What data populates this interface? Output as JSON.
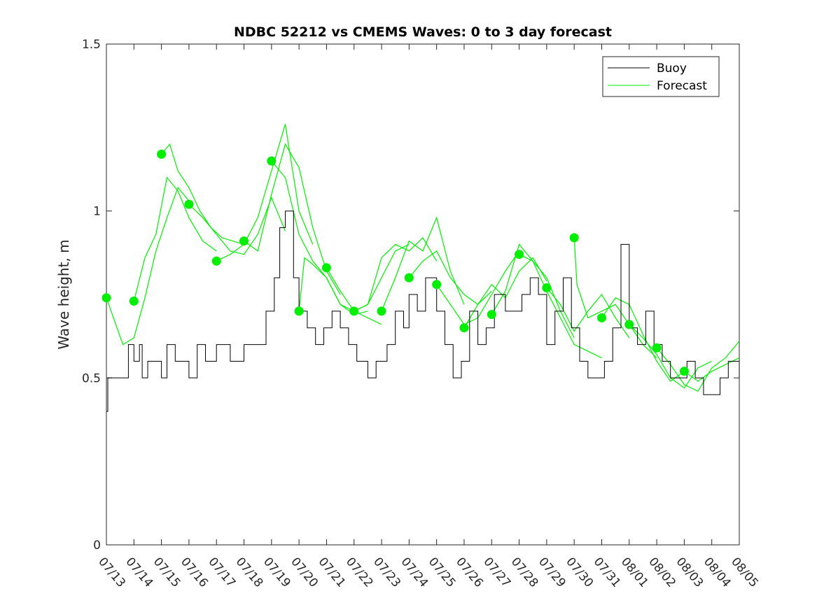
{
  "chart_data": {
    "type": "line",
    "title": "NDBC 52212 vs CMEMS Waves: 0 to 3 day forecast",
    "xlabel": "",
    "ylabel": "Wave height, m",
    "xlim": [
      "07/13",
      "08/05"
    ],
    "ylim": [
      0,
      1.5
    ],
    "x_tick_labels": [
      "07/13",
      "07/14",
      "07/15",
      "07/16",
      "07/17",
      "07/18",
      "07/19",
      "07/20",
      "07/21",
      "07/22",
      "07/23",
      "07/24",
      "07/25",
      "07/26",
      "07/27",
      "07/28",
      "07/29",
      "07/30",
      "07/31",
      "08/01",
      "08/02",
      "08/03",
      "08/04",
      "08/05"
    ],
    "y_ticks": [
      0,
      0.5,
      1,
      1.5
    ],
    "y_tick_labels": [
      "0",
      "0.5",
      "1",
      "1.5"
    ],
    "grid": false,
    "legend": {
      "placement": "top-right",
      "entries": [
        "Buoy",
        "Forecast"
      ]
    },
    "colors": {
      "buoy": "#000000",
      "forecast": "#00ee00",
      "markers": "#00ee00",
      "axis": "#262626"
    },
    "x_unit": "days since 07/13 00:00 (07/13 = 0, 08/05 = 23)",
    "buoy": {
      "name": "Buoy",
      "x": [
        0,
        0.05,
        0.1,
        0.6,
        0.8,
        1.0,
        1.2,
        1.3,
        1.5,
        2.0,
        2.2,
        2.5,
        3.0,
        3.3,
        3.6,
        4.0,
        4.5,
        5.0,
        5.3,
        5.6,
        5.8,
        6.0,
        6.1,
        6.3,
        6.5,
        6.8,
        7.0,
        7.3,
        7.6,
        7.9,
        8.2,
        8.5,
        8.8,
        9.1,
        9.5,
        9.8,
        10.2,
        10.5,
        10.8,
        11.0,
        11.3,
        11.6,
        12.0,
        12.3,
        12.6,
        12.9,
        13.2,
        13.5,
        13.8,
        14.1,
        14.5,
        14.8,
        15.1,
        15.4,
        15.7,
        16.0,
        16.3,
        16.6,
        16.9,
        17.2,
        17.5,
        17.8,
        18.1,
        18.4,
        18.7,
        19.0,
        19.3,
        19.6,
        19.9,
        20.2,
        20.5,
        20.8,
        21.1,
        21.4,
        21.7,
        22.0,
        22.3,
        22.6,
        23.0
      ],
      "y": [
        0.4,
        0.5,
        0.5,
        0.5,
        0.6,
        0.55,
        0.6,
        0.5,
        0.55,
        0.5,
        0.6,
        0.55,
        0.5,
        0.6,
        0.55,
        0.6,
        0.55,
        0.6,
        0.6,
        0.6,
        0.7,
        0.7,
        0.8,
        0.95,
        1.0,
        0.8,
        0.7,
        0.65,
        0.6,
        0.65,
        0.7,
        0.65,
        0.6,
        0.55,
        0.5,
        0.55,
        0.6,
        0.7,
        0.65,
        0.75,
        0.7,
        0.8,
        0.7,
        0.6,
        0.5,
        0.55,
        0.7,
        0.6,
        0.65,
        0.75,
        0.7,
        0.7,
        0.75,
        0.8,
        0.75,
        0.6,
        0.7,
        0.8,
        0.65,
        0.55,
        0.5,
        0.5,
        0.55,
        0.65,
        0.9,
        0.65,
        0.6,
        0.7,
        0.6,
        0.55,
        0.5,
        0.5,
        0.55,
        0.5,
        0.45,
        0.45,
        0.5,
        0.55,
        0.5
      ]
    },
    "forecast_runs": [
      {
        "x": [
          0,
          0.3,
          0.6,
          1.0,
          1.4,
          1.8,
          2.2,
          2.6,
          3.0
        ],
        "y": [
          0.74,
          0.67,
          0.6,
          0.62,
          0.74,
          0.88,
          0.98,
          1.07,
          1.03
        ]
      },
      {
        "x": [
          1,
          1.4,
          1.8,
          2.2,
          2.6,
          3.0,
          3.5,
          4.0
        ],
        "y": [
          0.73,
          0.86,
          0.93,
          1.1,
          1.06,
          0.98,
          0.91,
          0.88
        ]
      },
      {
        "x": [
          2,
          2.3,
          2.6,
          3.0,
          3.4,
          3.8,
          4.2,
          5.0
        ],
        "y": [
          1.17,
          1.2,
          1.12,
          1.07,
          1.0,
          0.95,
          0.92,
          0.9
        ]
      },
      {
        "x": [
          3,
          3.5,
          4.0,
          4.5,
          5.0,
          5.5,
          6.0,
          6.5
        ],
        "y": [
          1.02,
          0.98,
          0.93,
          0.88,
          0.87,
          0.93,
          1.04,
          0.94
        ]
      },
      {
        "x": [
          4,
          4.5,
          5.0,
          5.5,
          6.0,
          6.5,
          7.0,
          7.5
        ],
        "y": [
          0.85,
          0.87,
          0.9,
          0.98,
          1.12,
          1.26,
          1.0,
          0.9
        ]
      },
      {
        "x": [
          5,
          5.5,
          6.0,
          6.5,
          7.0,
          7.5,
          8.0,
          8.5
        ],
        "y": [
          0.91,
          0.88,
          1.05,
          1.2,
          1.13,
          0.95,
          0.82,
          0.75
        ]
      },
      {
        "x": [
          6,
          6.5,
          7.0,
          7.5,
          8.0,
          8.5,
          9.0,
          9.5
        ],
        "y": [
          1.15,
          1.1,
          0.93,
          0.85,
          0.8,
          0.72,
          0.69,
          0.7
        ]
      },
      {
        "x": [
          7,
          7.2,
          7.5,
          8.0,
          8.5,
          9.0,
          9.5,
          10.0
        ],
        "y": [
          0.7,
          0.86,
          0.84,
          0.8,
          0.72,
          0.7,
          0.68,
          0.66
        ]
      },
      {
        "x": [
          8,
          8.5,
          9.0,
          9.5,
          10.0,
          10.5,
          11.0
        ],
        "y": [
          0.83,
          0.76,
          0.7,
          0.72,
          0.8,
          0.88,
          0.9
        ]
      },
      {
        "x": [
          9,
          9.5,
          10.0,
          10.5,
          11.0,
          11.5,
          12.0
        ],
        "y": [
          0.7,
          0.72,
          0.86,
          0.9,
          0.88,
          0.92,
          0.85
        ]
      },
      {
        "x": [
          10,
          10.5,
          11.0,
          11.5,
          12.0,
          12.5,
          13.0
        ],
        "y": [
          0.7,
          0.8,
          0.91,
          0.88,
          0.98,
          0.82,
          0.72
        ]
      },
      {
        "x": [
          11,
          11.5,
          12.0,
          12.5,
          13.0,
          13.5,
          14.0
        ],
        "y": [
          0.8,
          0.85,
          0.88,
          0.8,
          0.75,
          0.72,
          0.76
        ]
      },
      {
        "x": [
          12,
          12.5,
          13.0,
          13.5,
          14.0,
          14.5,
          15.0
        ],
        "y": [
          0.78,
          0.72,
          0.66,
          0.68,
          0.75,
          0.82,
          0.88
        ]
      },
      {
        "x": [
          13,
          13.5,
          14.0,
          14.5,
          15.0,
          15.5,
          16.0
        ],
        "y": [
          0.65,
          0.72,
          0.78,
          0.74,
          0.82,
          0.86,
          0.79
        ]
      },
      {
        "x": [
          14,
          14.5,
          15.0,
          15.5,
          16.0,
          16.5,
          17.0
        ],
        "y": [
          0.69,
          0.76,
          0.9,
          0.85,
          0.8,
          0.7,
          0.62
        ]
      },
      {
        "x": [
          15,
          15.5,
          16.0,
          16.5,
          17.0,
          17.5,
          18.0
        ],
        "y": [
          0.87,
          0.85,
          0.76,
          0.68,
          0.6,
          0.58,
          0.56
        ]
      },
      {
        "x": [
          16,
          16.5,
          17.0,
          17.5,
          18.0,
          18.5,
          19.0
        ],
        "y": [
          0.77,
          0.72,
          0.64,
          0.7,
          0.75,
          0.68,
          0.62
        ]
      },
      {
        "x": [
          17,
          17.1,
          17.5,
          18.0,
          18.5,
          19.0,
          19.5,
          20.0
        ],
        "y": [
          0.92,
          0.78,
          0.68,
          0.7,
          0.72,
          0.66,
          0.6,
          0.56
        ]
      },
      {
        "x": [
          18,
          18.5,
          19.0,
          19.5,
          20.0,
          20.5,
          21.0
        ],
        "y": [
          0.68,
          0.74,
          0.72,
          0.63,
          0.55,
          0.49,
          0.52
        ]
      },
      {
        "x": [
          19,
          19.5,
          20.0,
          20.5,
          21.0,
          21.5,
          22.0
        ],
        "y": [
          0.66,
          0.62,
          0.57,
          0.5,
          0.47,
          0.53,
          0.55
        ]
      },
      {
        "x": [
          20,
          20.5,
          21.0,
          21.5,
          22.0,
          22.5,
          23.0
        ],
        "y": [
          0.59,
          0.54,
          0.48,
          0.46,
          0.53,
          0.56,
          0.61
        ]
      },
      {
        "x": [
          21,
          21.5,
          22.0,
          22.5,
          23.0
        ],
        "y": [
          0.52,
          0.49,
          0.52,
          0.54,
          0.56
        ]
      }
    ],
    "forecast_markers": {
      "x": [
        0,
        1,
        2,
        3,
        4,
        5,
        6,
        7,
        8,
        9,
        10,
        11,
        12,
        13,
        14,
        15,
        16,
        17,
        18,
        19,
        20,
        21
      ],
      "y": [
        0.74,
        0.73,
        1.17,
        1.02,
        0.85,
        0.91,
        1.15,
        0.7,
        0.83,
        0.7,
        0.7,
        0.8,
        0.78,
        0.65,
        0.69,
        0.87,
        0.77,
        0.92,
        0.68,
        0.66,
        0.59,
        0.52
      ]
    }
  }
}
